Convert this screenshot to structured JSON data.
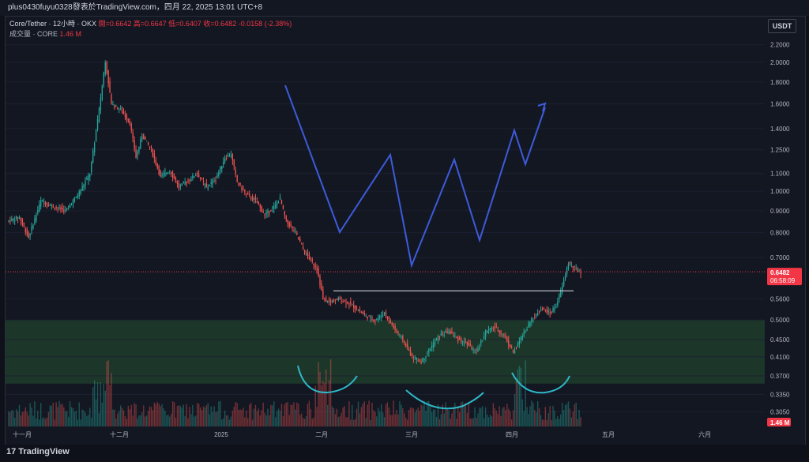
{
  "header": {
    "author_line": "plus0430fuyu0328發表於TradingView.com，四月 22, 2025 13:01 UTC+8"
  },
  "legend": {
    "symbol": "Core/Tether · 12小時 · OKX",
    "ohlc_line": "開=0.6642  高=0.6647  低=0.6407  收=0.6482  -0.0158 (-2.38%)",
    "volume_label": "成交量 · CORE",
    "volume_value": "1.46 M"
  },
  "toolbar": {
    "currency": "USDT"
  },
  "footer": {
    "brand": "TradingView"
  },
  "colors": {
    "up": "#26a69a",
    "down": "#ef5350",
    "zone": "#1f3d2b",
    "blue_path": "#3d5bdb",
    "cyan_arc": "#2fb8c8",
    "last_price": "#f23645"
  },
  "chart_data": {
    "type": "candlestick",
    "y_scale": "log",
    "y_ticks": [
      "2.2000",
      "2.0000",
      "1.8000",
      "1.6000",
      "1.4000",
      "1.2500",
      "1.1000",
      "1.0000",
      "0.9000",
      "0.8000",
      "0.7000",
      "0.5600",
      "0.5000",
      "0.4500",
      "0.4100",
      "0.3700",
      "0.3350",
      "0.3050"
    ],
    "x_ticks": [
      "十一月",
      "十二月",
      "2025",
      "二月",
      "三月",
      "四月",
      "五月",
      "六月"
    ],
    "last_price": "0.6482",
    "countdown": "06:58:09",
    "volume_last": "1.46 M",
    "support_zone": [
      0.355,
      0.5
    ],
    "resistance_line": 0.585
  }
}
